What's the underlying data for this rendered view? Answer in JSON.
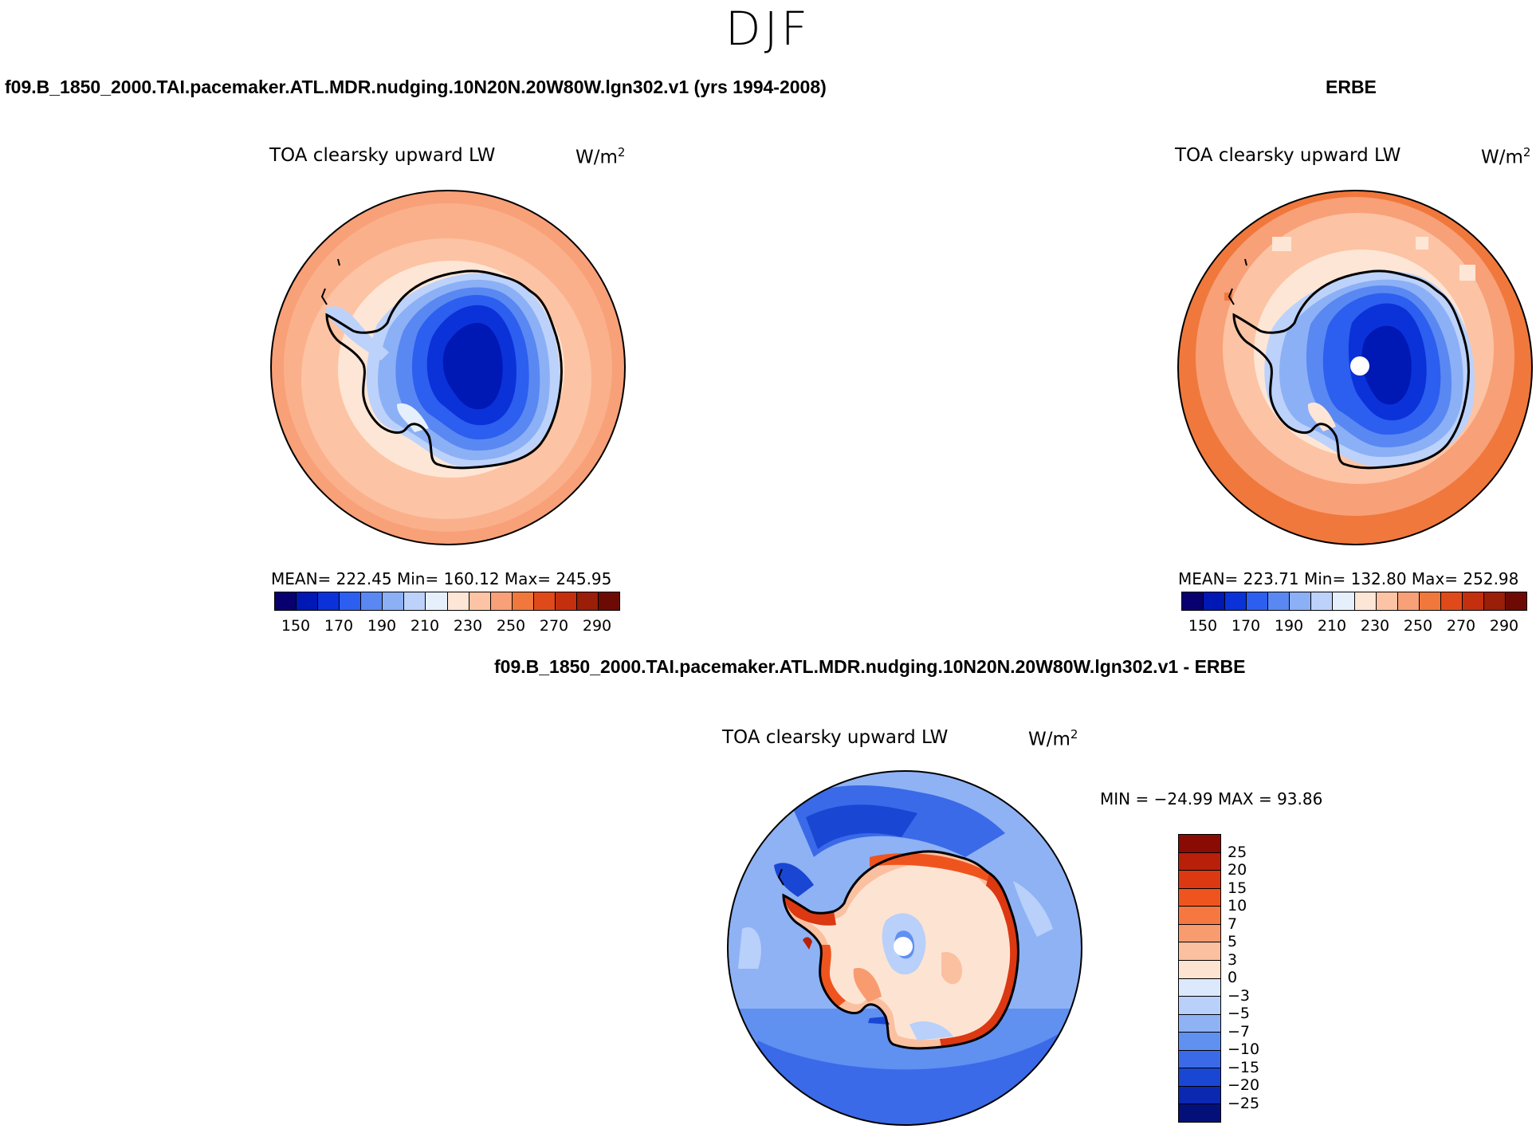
{
  "season": "DJF",
  "panels": [
    {
      "case_title": "f09.B_1850_2000.TAI.pacemaker.ATL.MDR.nudging.10N20N.20W80W.lgn302.v1 (yrs 1994-2008)",
      "title": "TOA clearsky upward LW",
      "units": "W/m",
      "units_exp": "2",
      "stats": "MEAN= 222.45   Min= 160.12   Max= 245.95"
    },
    {
      "case_title": "ERBE",
      "title": "TOA clearsky upward LW",
      "units": "W/m",
      "units_exp": "2",
      "stats": "MEAN= 223.71   Min= 132.80   Max= 252.98"
    },
    {
      "case_title": "f09.B_1850_2000.TAI.pacemaker.ATL.MDR.nudging.10N20N.20W80W.lgn302.v1 - ERBE",
      "title": "TOA clearsky upward LW",
      "units": "W/m",
      "units_exp": "2",
      "stats": "MIN = −24.99  MAX =   93.86"
    }
  ],
  "colorbar_abs": {
    "labels": [
      "150",
      "170",
      "190",
      "210",
      "230",
      "250",
      "270",
      "290"
    ],
    "colors": [
      "#08006e",
      "#0018b4",
      "#0a32d8",
      "#2c5ef0",
      "#5a88f2",
      "#8cb0f6",
      "#bcd2fa",
      "#e6f0fc",
      "#fee6d6",
      "#fcc4a4",
      "#f8a078",
      "#f0783c",
      "#e04a1a",
      "#c4300e",
      "#9a1e08",
      "#6e0a04"
    ]
  },
  "colorbar_diff": {
    "labels": [
      "25",
      "20",
      "15",
      "10",
      "7",
      "5",
      "3",
      "0",
      "−3",
      "−5",
      "−7",
      "−10",
      "−15",
      "−20",
      "−25"
    ],
    "colors": [
      "#8a0a04",
      "#b8200a",
      "#dc3812",
      "#f0541e",
      "#f67840",
      "#f89c70",
      "#fbc0a0",
      "#fde4d2",
      "#dce8fc",
      "#b8d0fa",
      "#8eb2f4",
      "#6090f0",
      "#3a6ae8",
      "#1a46d4",
      "#0a28b0",
      "#04107a"
    ]
  },
  "chart_data": [
    {
      "type": "map",
      "projection": "south polar stereographic",
      "title": "TOA clearsky upward LW",
      "source": "f09.B_1850_2000.TAI.pacemaker.ATL.MDR.nudging.10N20N.20W80W.lgn302.v1 (yrs 1994-2008)",
      "units": "W/m2",
      "mean": 222.45,
      "min": 160.12,
      "max": 245.95,
      "levels": [
        150,
        160,
        170,
        180,
        190,
        200,
        210,
        220,
        230,
        240,
        250,
        260,
        270,
        280,
        290
      ]
    },
    {
      "type": "map",
      "projection": "south polar stereographic",
      "title": "TOA clearsky upward LW",
      "source": "ERBE",
      "units": "W/m2",
      "mean": 223.71,
      "min": 132.8,
      "max": 252.98,
      "levels": [
        150,
        160,
        170,
        180,
        190,
        200,
        210,
        220,
        230,
        240,
        250,
        260,
        270,
        280,
        290
      ]
    },
    {
      "type": "map",
      "projection": "south polar stereographic",
      "title": "TOA clearsky upward LW",
      "source": "f09.B_1850_2000.TAI.pacemaker.ATL.MDR.nudging.10N20N.20W80W.lgn302.v1 - ERBE",
      "units": "W/m2",
      "min": -24.99,
      "max": 93.86,
      "levels": [
        -25,
        -20,
        -15,
        -10,
        -7,
        -5,
        -3,
        0,
        3,
        5,
        7,
        10,
        15,
        20,
        25
      ]
    }
  ]
}
